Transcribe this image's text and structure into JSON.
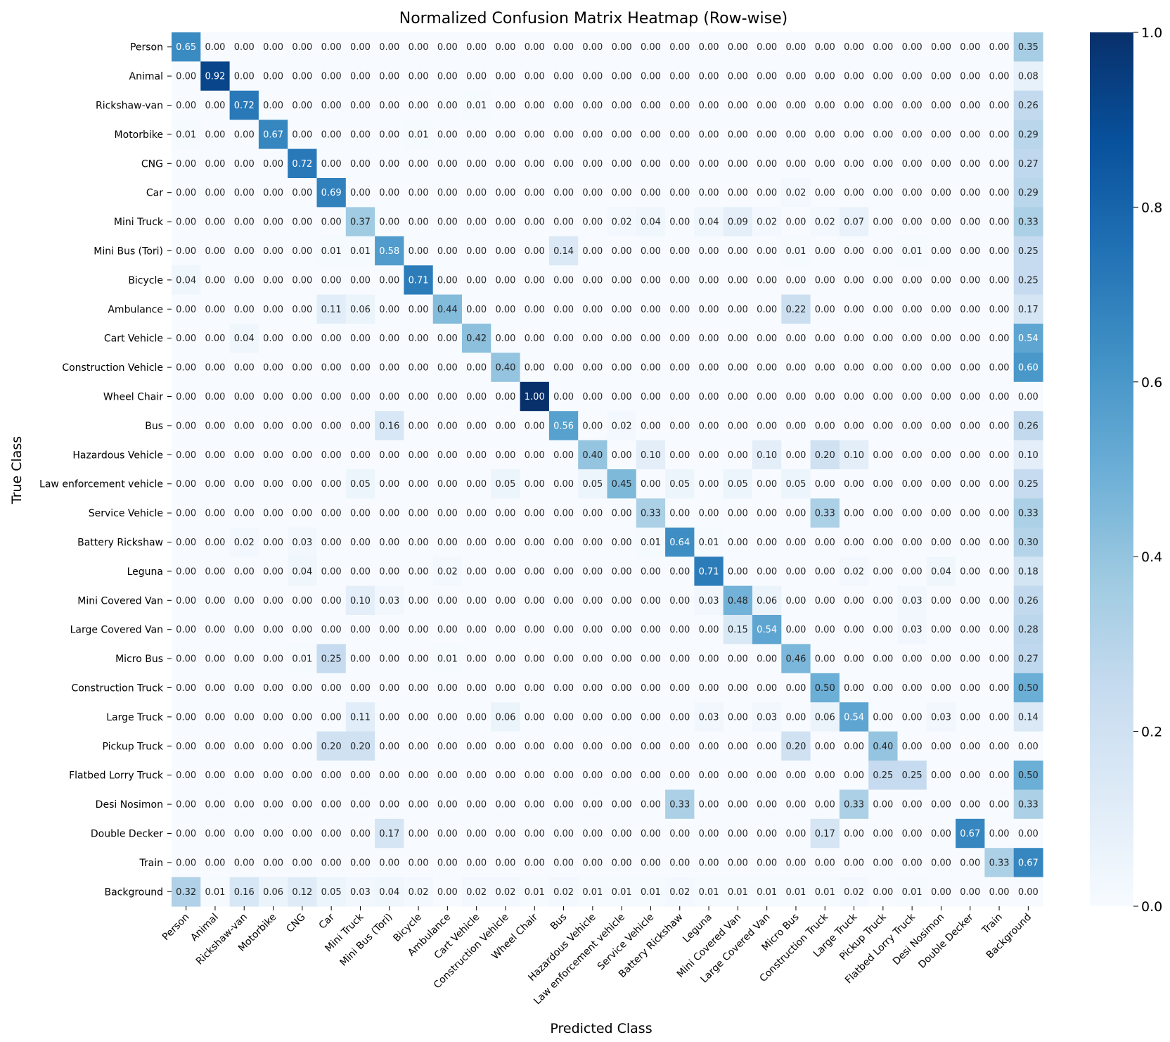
{
  "chart_data": {
    "type": "heatmap",
    "title": "Normalized Confusion Matrix Heatmap (Row-wise)",
    "xlabel": "Predicted Class",
    "ylabel": "True Class",
    "row_labels": [
      "Person",
      "Animal",
      "Rickshaw-van",
      "Motorbike",
      "CNG",
      "Car",
      "Mini Truck",
      "Mini Bus (Tori)",
      "Bicycle",
      "Ambulance",
      "Cart Vehicle",
      "Construction Vehicle",
      "Wheel Chair",
      "Bus",
      "Hazardous Vehicle",
      "Law enforcement vehicle",
      "Service Vehicle",
      "Battery Rickshaw",
      "Leguna",
      "Mini Covered Van",
      "Large Covered Van",
      "Micro Bus",
      "Construction Truck",
      "Large Truck",
      "Pickup Truck",
      "Flatbed Lorry Truck",
      "Desi Nosimon",
      "Double Decker",
      "Train",
      "Background"
    ],
    "col_labels": [
      "Person",
      "Animal",
      "Rickshaw-van",
      "Motorbike",
      "CNG",
      "Car",
      "Mini Truck",
      "Mini Bus (Tori)",
      "Bicycle",
      "Ambulance",
      "Cart Vehicle",
      "Construction Vehicle",
      "Wheel Chair",
      "Bus",
      "Hazardous Vehicle",
      "Law enforcement vehicle",
      "Service Vehicle",
      "Battery Rickshaw",
      "Leguna",
      "Mini Covered Van",
      "Large Covered Van",
      "Micro Bus",
      "Construction Truck",
      "Large Truck",
      "Pickup Truck",
      "Flatbed Lorry Truck",
      "Desi Nosimon",
      "Double Decker",
      "Train",
      "Background"
    ],
    "values": [
      [
        0.65,
        0,
        0,
        0,
        0,
        0,
        0,
        0,
        0,
        0,
        0,
        0,
        0,
        0,
        0,
        0,
        0,
        0,
        0,
        0,
        0,
        0,
        0,
        0,
        0,
        0,
        0,
        0,
        0,
        0.35
      ],
      [
        0,
        0.92,
        0,
        0,
        0,
        0,
        0,
        0,
        0,
        0,
        0,
        0,
        0,
        0,
        0,
        0,
        0,
        0,
        0,
        0,
        0,
        0,
        0,
        0,
        0,
        0,
        0,
        0,
        0,
        0.08
      ],
      [
        0,
        0,
        0.72,
        0,
        0,
        0,
        0,
        0,
        0,
        0,
        0.01,
        0,
        0,
        0,
        0,
        0,
        0,
        0,
        0,
        0,
        0,
        0,
        0,
        0,
        0,
        0,
        0,
        0,
        0,
        0.26
      ],
      [
        0.01,
        0,
        0,
        0.67,
        0,
        0,
        0,
        0,
        0.01,
        0,
        0,
        0,
        0,
        0,
        0,
        0,
        0,
        0,
        0,
        0,
        0,
        0,
        0,
        0,
        0,
        0,
        0,
        0,
        0,
        0.29
      ],
      [
        0,
        0,
        0,
        0,
        0.72,
        0,
        0,
        0,
        0,
        0,
        0,
        0,
        0,
        0,
        0,
        0,
        0,
        0,
        0,
        0,
        0,
        0,
        0,
        0,
        0,
        0,
        0,
        0,
        0,
        0.27
      ],
      [
        0,
        0,
        0,
        0,
        0,
        0.69,
        0,
        0,
        0,
        0,
        0,
        0,
        0,
        0,
        0,
        0,
        0,
        0,
        0,
        0,
        0,
        0.02,
        0,
        0,
        0,
        0,
        0,
        0,
        0,
        0.29
      ],
      [
        0,
        0,
        0,
        0,
        0,
        0,
        0.37,
        0,
        0,
        0,
        0,
        0,
        0,
        0,
        0,
        0.02,
        0.04,
        0,
        0.04,
        0.09,
        0.02,
        0,
        0.02,
        0.07,
        0,
        0,
        0,
        0,
        0,
        0.33
      ],
      [
        0,
        0,
        0,
        0,
        0,
        0.01,
        0.01,
        0.58,
        0,
        0,
        0,
        0,
        0,
        0.14,
        0,
        0,
        0,
        0,
        0,
        0,
        0,
        0.01,
        0,
        0,
        0,
        0.01,
        0,
        0,
        0,
        0.25
      ],
      [
        0.04,
        0,
        0,
        0,
        0,
        0,
        0,
        0,
        0.71,
        0,
        0,
        0,
        0,
        0,
        0,
        0,
        0,
        0,
        0,
        0,
        0,
        0,
        0,
        0,
        0,
        0,
        0,
        0,
        0,
        0.25
      ],
      [
        0,
        0,
        0,
        0,
        0,
        0.11,
        0.06,
        0,
        0,
        0.44,
        0,
        0,
        0,
        0,
        0,
        0,
        0,
        0,
        0,
        0,
        0,
        0.22,
        0,
        0,
        0,
        0,
        0,
        0,
        0,
        0.17
      ],
      [
        0,
        0,
        0.04,
        0,
        0,
        0,
        0,
        0,
        0,
        0,
        0.42,
        0,
        0,
        0,
        0,
        0,
        0,
        0,
        0,
        0,
        0,
        0,
        0,
        0,
        0,
        0,
        0,
        0,
        0,
        0.54
      ],
      [
        0,
        0,
        0,
        0,
        0,
        0,
        0,
        0,
        0,
        0,
        0,
        0.4,
        0,
        0,
        0,
        0,
        0,
        0,
        0,
        0,
        0,
        0,
        0,
        0,
        0,
        0,
        0,
        0,
        0,
        0.6
      ],
      [
        0,
        0,
        0,
        0,
        0,
        0,
        0,
        0,
        0,
        0,
        0,
        0,
        1.0,
        0,
        0,
        0,
        0,
        0,
        0,
        0,
        0,
        0,
        0,
        0,
        0,
        0,
        0,
        0,
        0,
        0
      ],
      [
        0,
        0,
        0,
        0,
        0,
        0,
        0,
        0.16,
        0,
        0,
        0,
        0,
        0,
        0.56,
        0,
        0.02,
        0,
        0,
        0,
        0,
        0,
        0,
        0,
        0,
        0,
        0,
        0,
        0,
        0,
        0.26
      ],
      [
        0,
        0,
        0,
        0,
        0,
        0,
        0,
        0,
        0,
        0,
        0,
        0,
        0,
        0,
        0.4,
        0,
        0.1,
        0,
        0,
        0,
        0.1,
        0,
        0.2,
        0.1,
        0,
        0,
        0,
        0,
        0,
        0.1
      ],
      [
        0,
        0,
        0,
        0,
        0,
        0,
        0.05,
        0,
        0,
        0,
        0,
        0.05,
        0,
        0,
        0.05,
        0.45,
        0,
        0.05,
        0,
        0.05,
        0,
        0.05,
        0,
        0,
        0,
        0,
        0,
        0,
        0,
        0.25
      ],
      [
        0,
        0,
        0,
        0,
        0,
        0,
        0,
        0,
        0,
        0,
        0,
        0,
        0,
        0,
        0,
        0,
        0.33,
        0,
        0,
        0,
        0,
        0,
        0.33,
        0,
        0,
        0,
        0,
        0,
        0,
        0.33
      ],
      [
        0,
        0,
        0.02,
        0,
        0.03,
        0,
        0,
        0,
        0,
        0,
        0,
        0,
        0,
        0,
        0,
        0,
        0.01,
        0.64,
        0.01,
        0,
        0,
        0,
        0,
        0,
        0,
        0,
        0,
        0,
        0,
        0.3
      ],
      [
        0,
        0,
        0,
        0,
        0.04,
        0,
        0,
        0,
        0,
        0.02,
        0,
        0,
        0,
        0,
        0,
        0,
        0,
        0,
        0.71,
        0,
        0,
        0,
        0,
        0.02,
        0,
        0,
        0.04,
        0,
        0,
        0.18
      ],
      [
        0,
        0,
        0,
        0,
        0,
        0,
        0.1,
        0.03,
        0,
        0,
        0,
        0,
        0,
        0,
        0,
        0,
        0,
        0,
        0.03,
        0.48,
        0.06,
        0,
        0,
        0,
        0,
        0.03,
        0,
        0,
        0,
        0.26
      ],
      [
        0,
        0,
        0,
        0,
        0,
        0,
        0,
        0,
        0,
        0,
        0,
        0,
        0,
        0,
        0,
        0,
        0,
        0,
        0,
        0.15,
        0.54,
        0,
        0,
        0,
        0,
        0.03,
        0,
        0,
        0,
        0.28
      ],
      [
        0,
        0,
        0,
        0,
        0.01,
        0.25,
        0,
        0,
        0,
        0.01,
        0,
        0,
        0,
        0,
        0,
        0,
        0,
        0,
        0,
        0,
        0,
        0.46,
        0,
        0,
        0,
        0,
        0,
        0,
        0,
        0.27
      ],
      [
        0,
        0,
        0,
        0,
        0,
        0,
        0,
        0,
        0,
        0,
        0,
        0,
        0,
        0,
        0,
        0,
        0,
        0,
        0,
        0,
        0,
        0,
        0.5,
        0,
        0,
        0,
        0,
        0,
        0,
        0.5
      ],
      [
        0,
        0,
        0,
        0,
        0,
        0,
        0.11,
        0,
        0,
        0,
        0,
        0.06,
        0,
        0,
        0,
        0,
        0,
        0,
        0.03,
        0,
        0.03,
        0,
        0.06,
        0.54,
        0,
        0,
        0.03,
        0,
        0,
        0.14
      ],
      [
        0,
        0,
        0,
        0,
        0,
        0.2,
        0.2,
        0,
        0,
        0,
        0,
        0,
        0,
        0,
        0,
        0,
        0,
        0,
        0,
        0,
        0,
        0.2,
        0,
        0,
        0.4,
        0,
        0,
        0,
        0,
        0
      ],
      [
        0,
        0,
        0,
        0,
        0,
        0,
        0,
        0,
        0,
        0,
        0,
        0,
        0,
        0,
        0,
        0,
        0,
        0,
        0,
        0,
        0,
        0,
        0,
        0,
        0.25,
        0.25,
        0,
        0,
        0,
        0.5
      ],
      [
        0,
        0,
        0,
        0,
        0,
        0,
        0,
        0,
        0,
        0,
        0,
        0,
        0,
        0,
        0,
        0,
        0,
        0.33,
        0,
        0,
        0,
        0,
        0,
        0.33,
        0,
        0,
        0,
        0,
        0,
        0.33
      ],
      [
        0,
        0,
        0,
        0,
        0,
        0,
        0,
        0.17,
        0,
        0,
        0,
        0,
        0,
        0,
        0,
        0,
        0,
        0,
        0,
        0,
        0,
        0,
        0.17,
        0,
        0,
        0,
        0,
        0.67,
        0,
        0
      ],
      [
        0,
        0,
        0,
        0,
        0,
        0,
        0,
        0,
        0,
        0,
        0,
        0,
        0,
        0,
        0,
        0,
        0,
        0,
        0,
        0,
        0,
        0,
        0,
        0,
        0,
        0,
        0,
        0,
        0.33,
        0.67
      ],
      [
        0.32,
        0.01,
        0.16,
        0.06,
        0.12,
        0.05,
        0.03,
        0.04,
        0.02,
        0,
        0.02,
        0.02,
        0.01,
        0.02,
        0.01,
        0.01,
        0.01,
        0.02,
        0.01,
        0.01,
        0.01,
        0.01,
        0.01,
        0.02,
        0,
        0.01,
        0,
        0,
        0,
        0
      ]
    ],
    "value_range": [
      0.0,
      1.0
    ],
    "colormap": "Blues",
    "colorbar_ticks": [
      0.0,
      0.2,
      0.4,
      0.6,
      0.8,
      1.0
    ],
    "colorbar_tick_labels": [
      "0.0",
      "0.2",
      "0.4",
      "0.6",
      "0.8",
      "1.0"
    ]
  }
}
